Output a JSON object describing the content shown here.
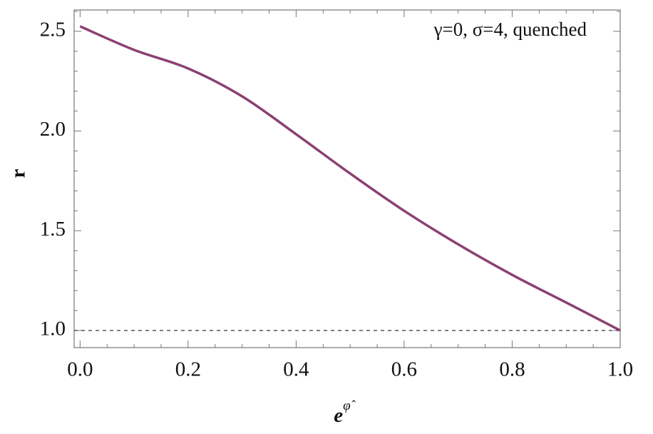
{
  "chart_data": {
    "type": "line",
    "annotation": "γ=0, σ=4, quenched",
    "xlabel": {
      "base": "e",
      "superscript": "φ̂"
    },
    "ylabel": "r",
    "x": [
      0,
      0.1,
      0.2,
      0.3,
      0.4,
      0.5,
      0.6,
      0.7,
      0.8,
      0.9,
      1.0
    ],
    "series": [
      {
        "color": "#8b4073",
        "values": [
          2.525,
          2.407,
          2.314,
          2.174,
          1.984,
          1.787,
          1.6,
          1.432,
          1.279,
          1.14,
          1.0
        ]
      }
    ],
    "reference_line": 1.0,
    "xlim": [
      -0.011,
      1.0
    ],
    "ylim": [
      0.914,
      2.607
    ],
    "xticks": [
      {
        "value": 0,
        "label": "0.0"
      },
      0.2,
      0.4,
      0.6,
      0.8,
      {
        "value": 1,
        "label": "1.0"
      }
    ],
    "yticks": [
      {
        "value": 1,
        "label": "1.0"
      },
      1.5,
      {
        "value": 2,
        "label": "2.0"
      },
      2.5
    ],
    "xminorticks": [
      0.05,
      0.1,
      0.15,
      0.25,
      0.3,
      0.35,
      0.45,
      0.5,
      0.55,
      0.65,
      0.7,
      0.75,
      0.85,
      0.9,
      0.95
    ],
    "yminorticks": [
      1.1,
      1.2,
      1.3,
      1.4,
      1.6,
      1.7,
      1.8,
      1.9,
      2.1,
      2.2,
      2.3,
      2.4,
      2.6
    ]
  }
}
